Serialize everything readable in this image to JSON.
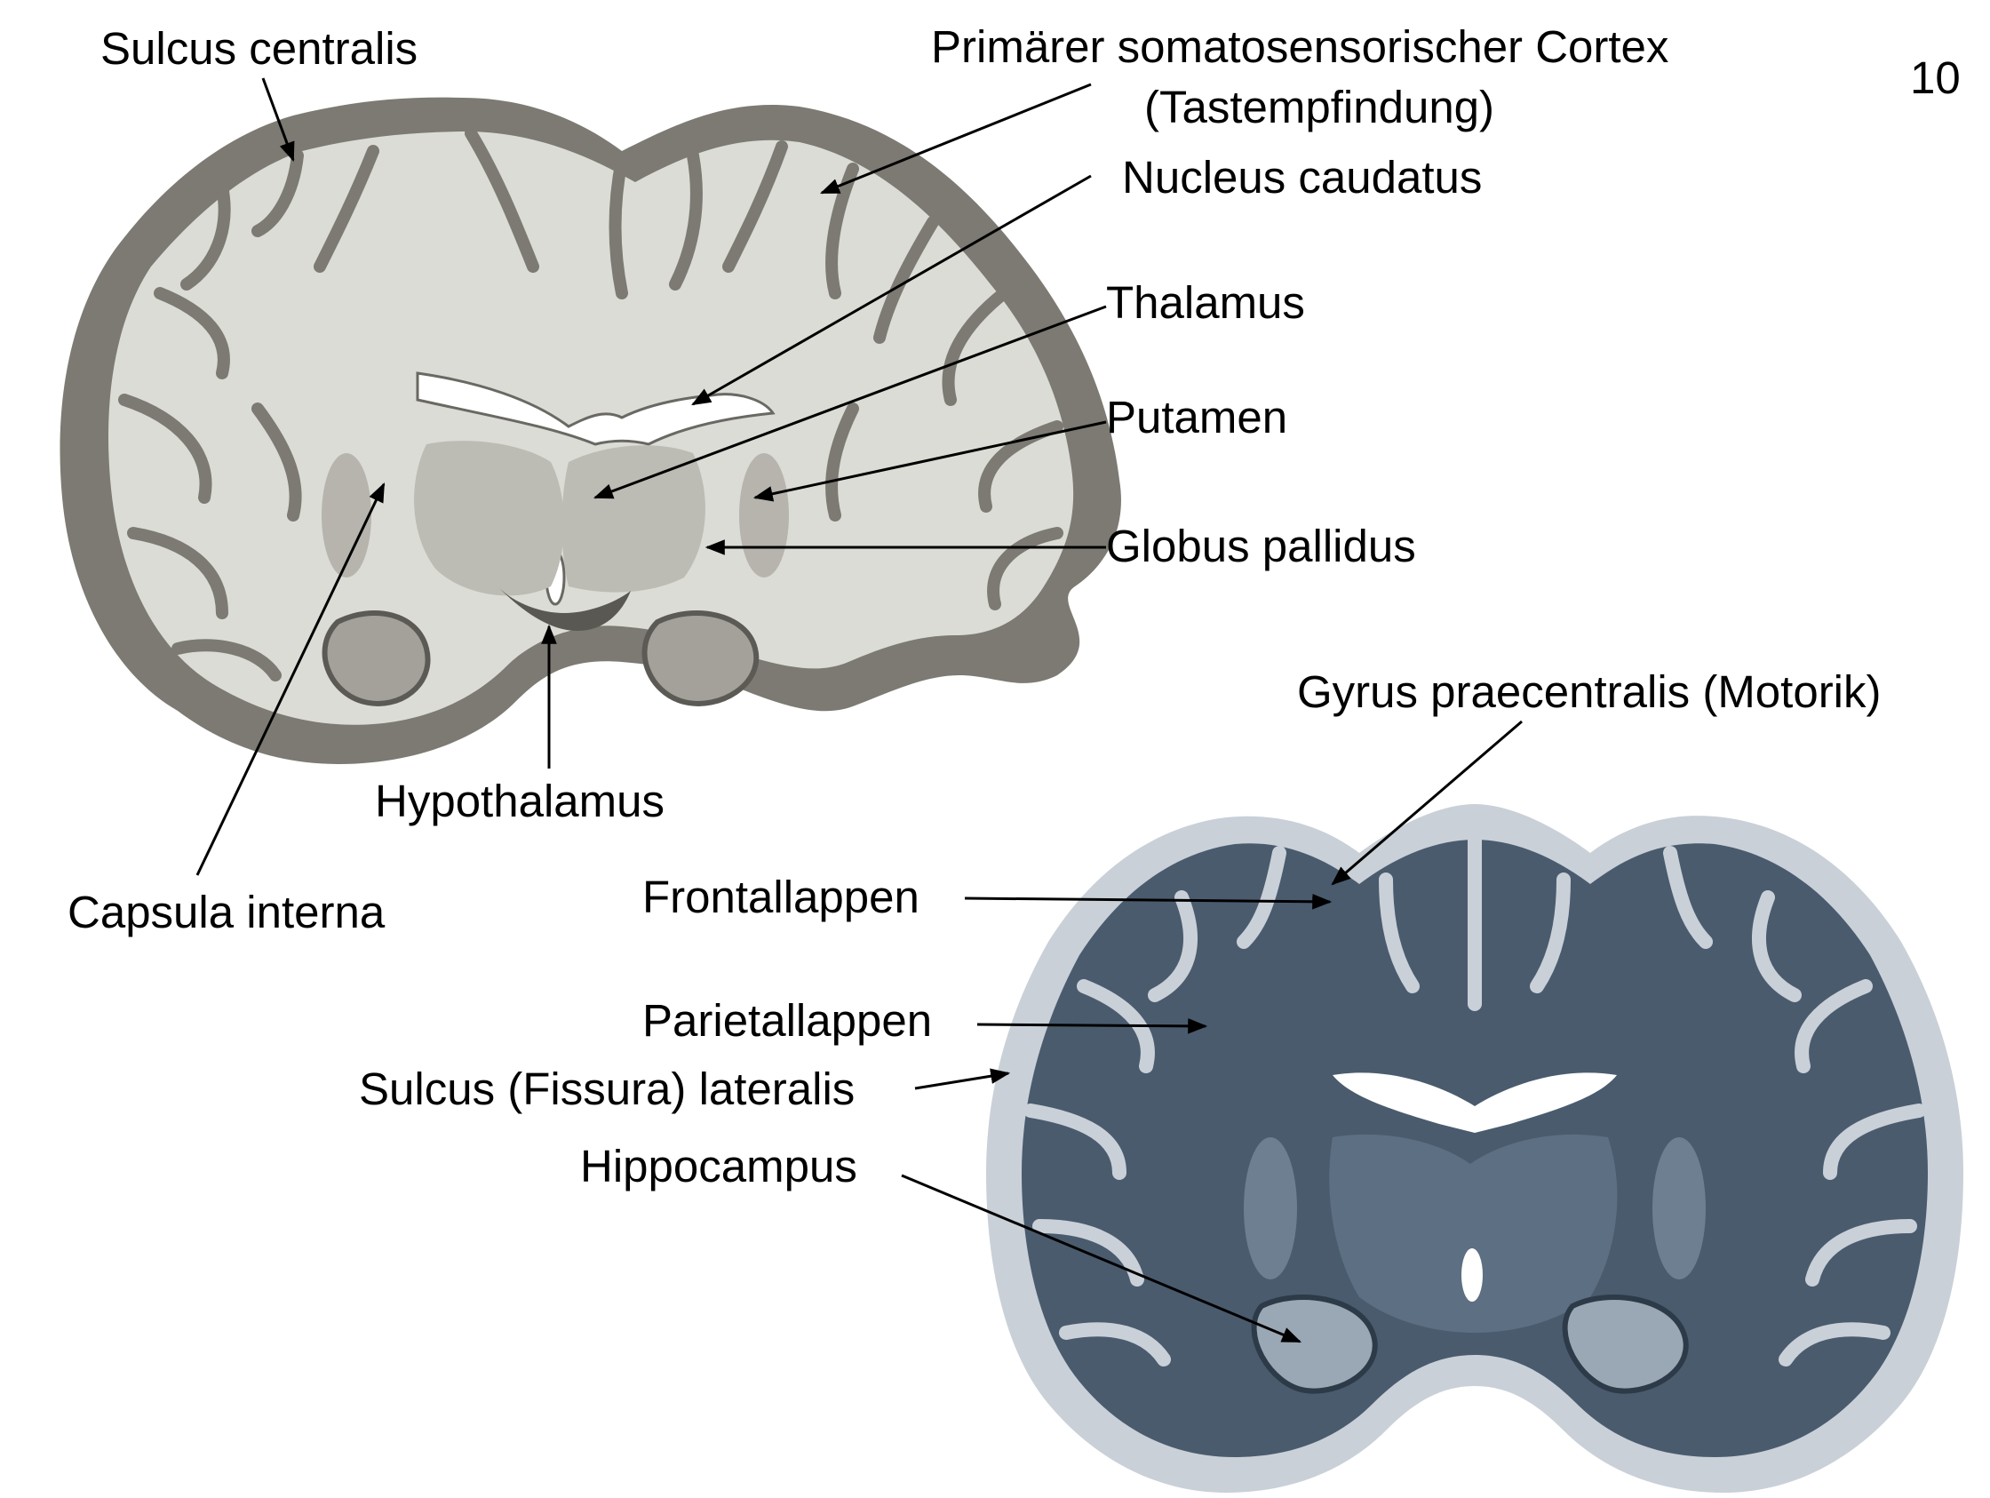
{
  "slide": {
    "page_number": "10"
  },
  "colors": {
    "top_section_tissue": "#dcdcd6",
    "top_section_cortex": "#7c7a72",
    "bottom_section_tissue": "#4a5b6e",
    "bottom_section_cortex": "#c9d0d8",
    "arrow": "#000000"
  },
  "labels": {
    "sulcus_centralis": "Sulcus centralis",
    "primary_somatosensory_1": "Primärer somatosensorischer Cortex",
    "primary_somatosensory_2": "(Tastempfindung)",
    "nucleus_caudatus": "Nucleus caudatus",
    "thalamus": "Thalamus",
    "putamen": "Putamen",
    "globus_pallidus": "Globus pallidus",
    "hypothalamus": "Hypothalamus",
    "capsula_interna": "Capsula interna",
    "gyrus_praecentralis": "Gyrus praecentralis (Motorik)",
    "frontallappen": "Frontallappen",
    "parietallappen": "Parietallappen",
    "sulcus_lateralis": "Sulcus (Fissura) lateralis",
    "hippocampus": "Hippocampus"
  },
  "images": {
    "top_section": "brain-coronal-section-unstained",
    "bottom_section": "brain-coronal-section-stained"
  }
}
